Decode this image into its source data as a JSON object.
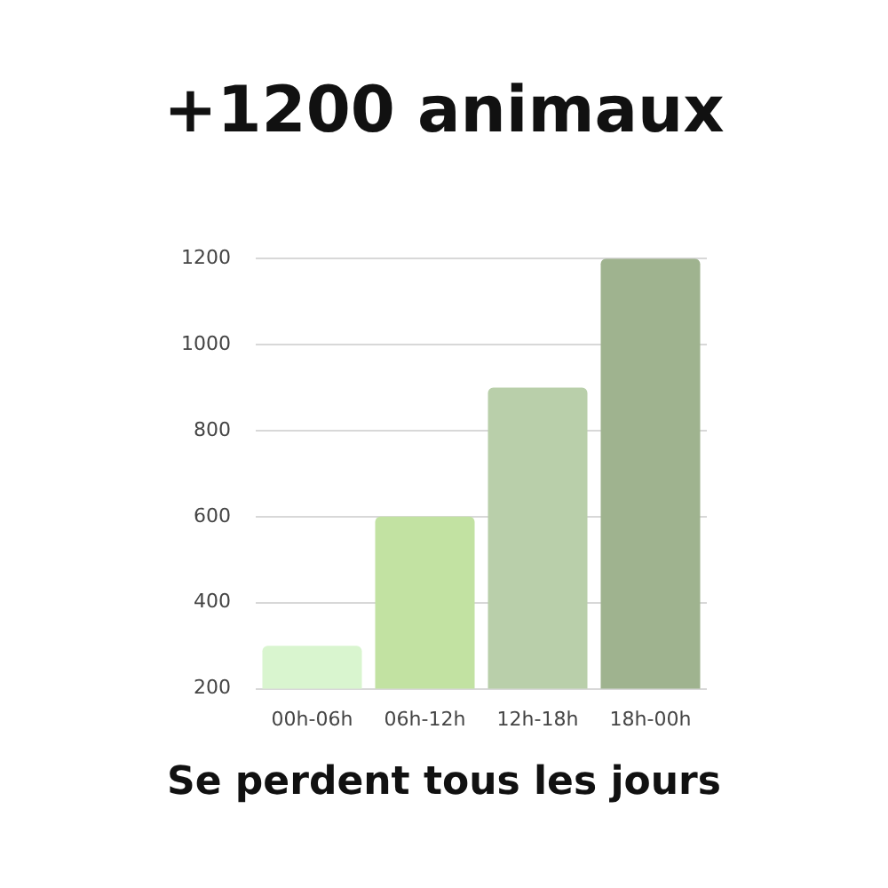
{
  "chart_data": {
    "type": "bar",
    "title": "+1200 animaux",
    "annotations": [
      "Se perdent tous les jours"
    ],
    "categories": [
      "00h-06h",
      "06h-12h",
      "12h-18h",
      "18h-00h"
    ],
    "values": [
      300,
      600,
      900,
      1200
    ],
    "colors": [
      "#d9f5cf",
      "#c2e2a2",
      "#b9cfaa",
      "#9fb38f"
    ],
    "ylim": [
      200,
      1200
    ],
    "yticks": [
      200,
      400,
      600,
      800,
      1000,
      1200
    ],
    "grid": "y",
    "legend": false
  }
}
